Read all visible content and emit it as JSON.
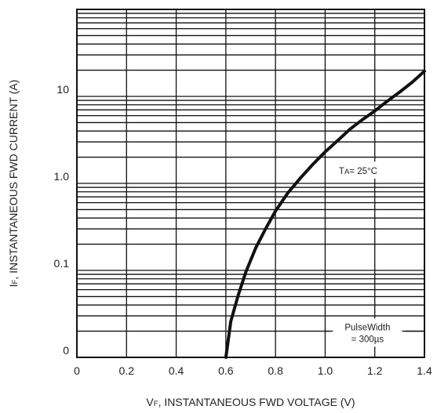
{
  "chart_data": {
    "type": "line",
    "xlabel_main": "V",
    "xlabel_sub": "F",
    "xlabel_rest": ", INSTANTANEOUS FWD VOLTAGE (V)",
    "ylabel_main": "I",
    "ylabel_sub": "F",
    "ylabel_rest": ", INSTANTANEOUS FWD CURRENT (A)",
    "x_ticks": [
      "0",
      "0.2",
      "0.4",
      "0.6",
      "0.8",
      "1.0",
      "1.2",
      "1.4"
    ],
    "y_ticks": [
      "0",
      "0.1",
      "1.0",
      "10"
    ],
    "xlim": [
      0,
      1.4
    ],
    "y_scale": "log",
    "grid": true,
    "annotations": {
      "temp_main": "T",
      "temp_sub": "A",
      "temp_rest": "= 25°C",
      "pulse_line1": "PulseWidth",
      "pulse_line2": "= 300µs"
    },
    "series": [
      {
        "x": [
          0.6,
          0.62,
          0.65,
          0.68,
          0.72,
          0.76,
          0.8,
          0.85,
          0.9,
          0.95,
          1.0,
          1.05,
          1.1,
          1.15,
          1.2,
          1.25,
          1.3,
          1.35,
          1.4
        ],
        "y": [
          0.01,
          0.026,
          0.052,
          0.095,
          0.18,
          0.3,
          0.48,
          0.78,
          1.15,
          1.65,
          2.3,
          3.1,
          4.2,
          5.4,
          6.8,
          8.8,
          11.2,
          14.5,
          19.5
        ]
      }
    ]
  }
}
